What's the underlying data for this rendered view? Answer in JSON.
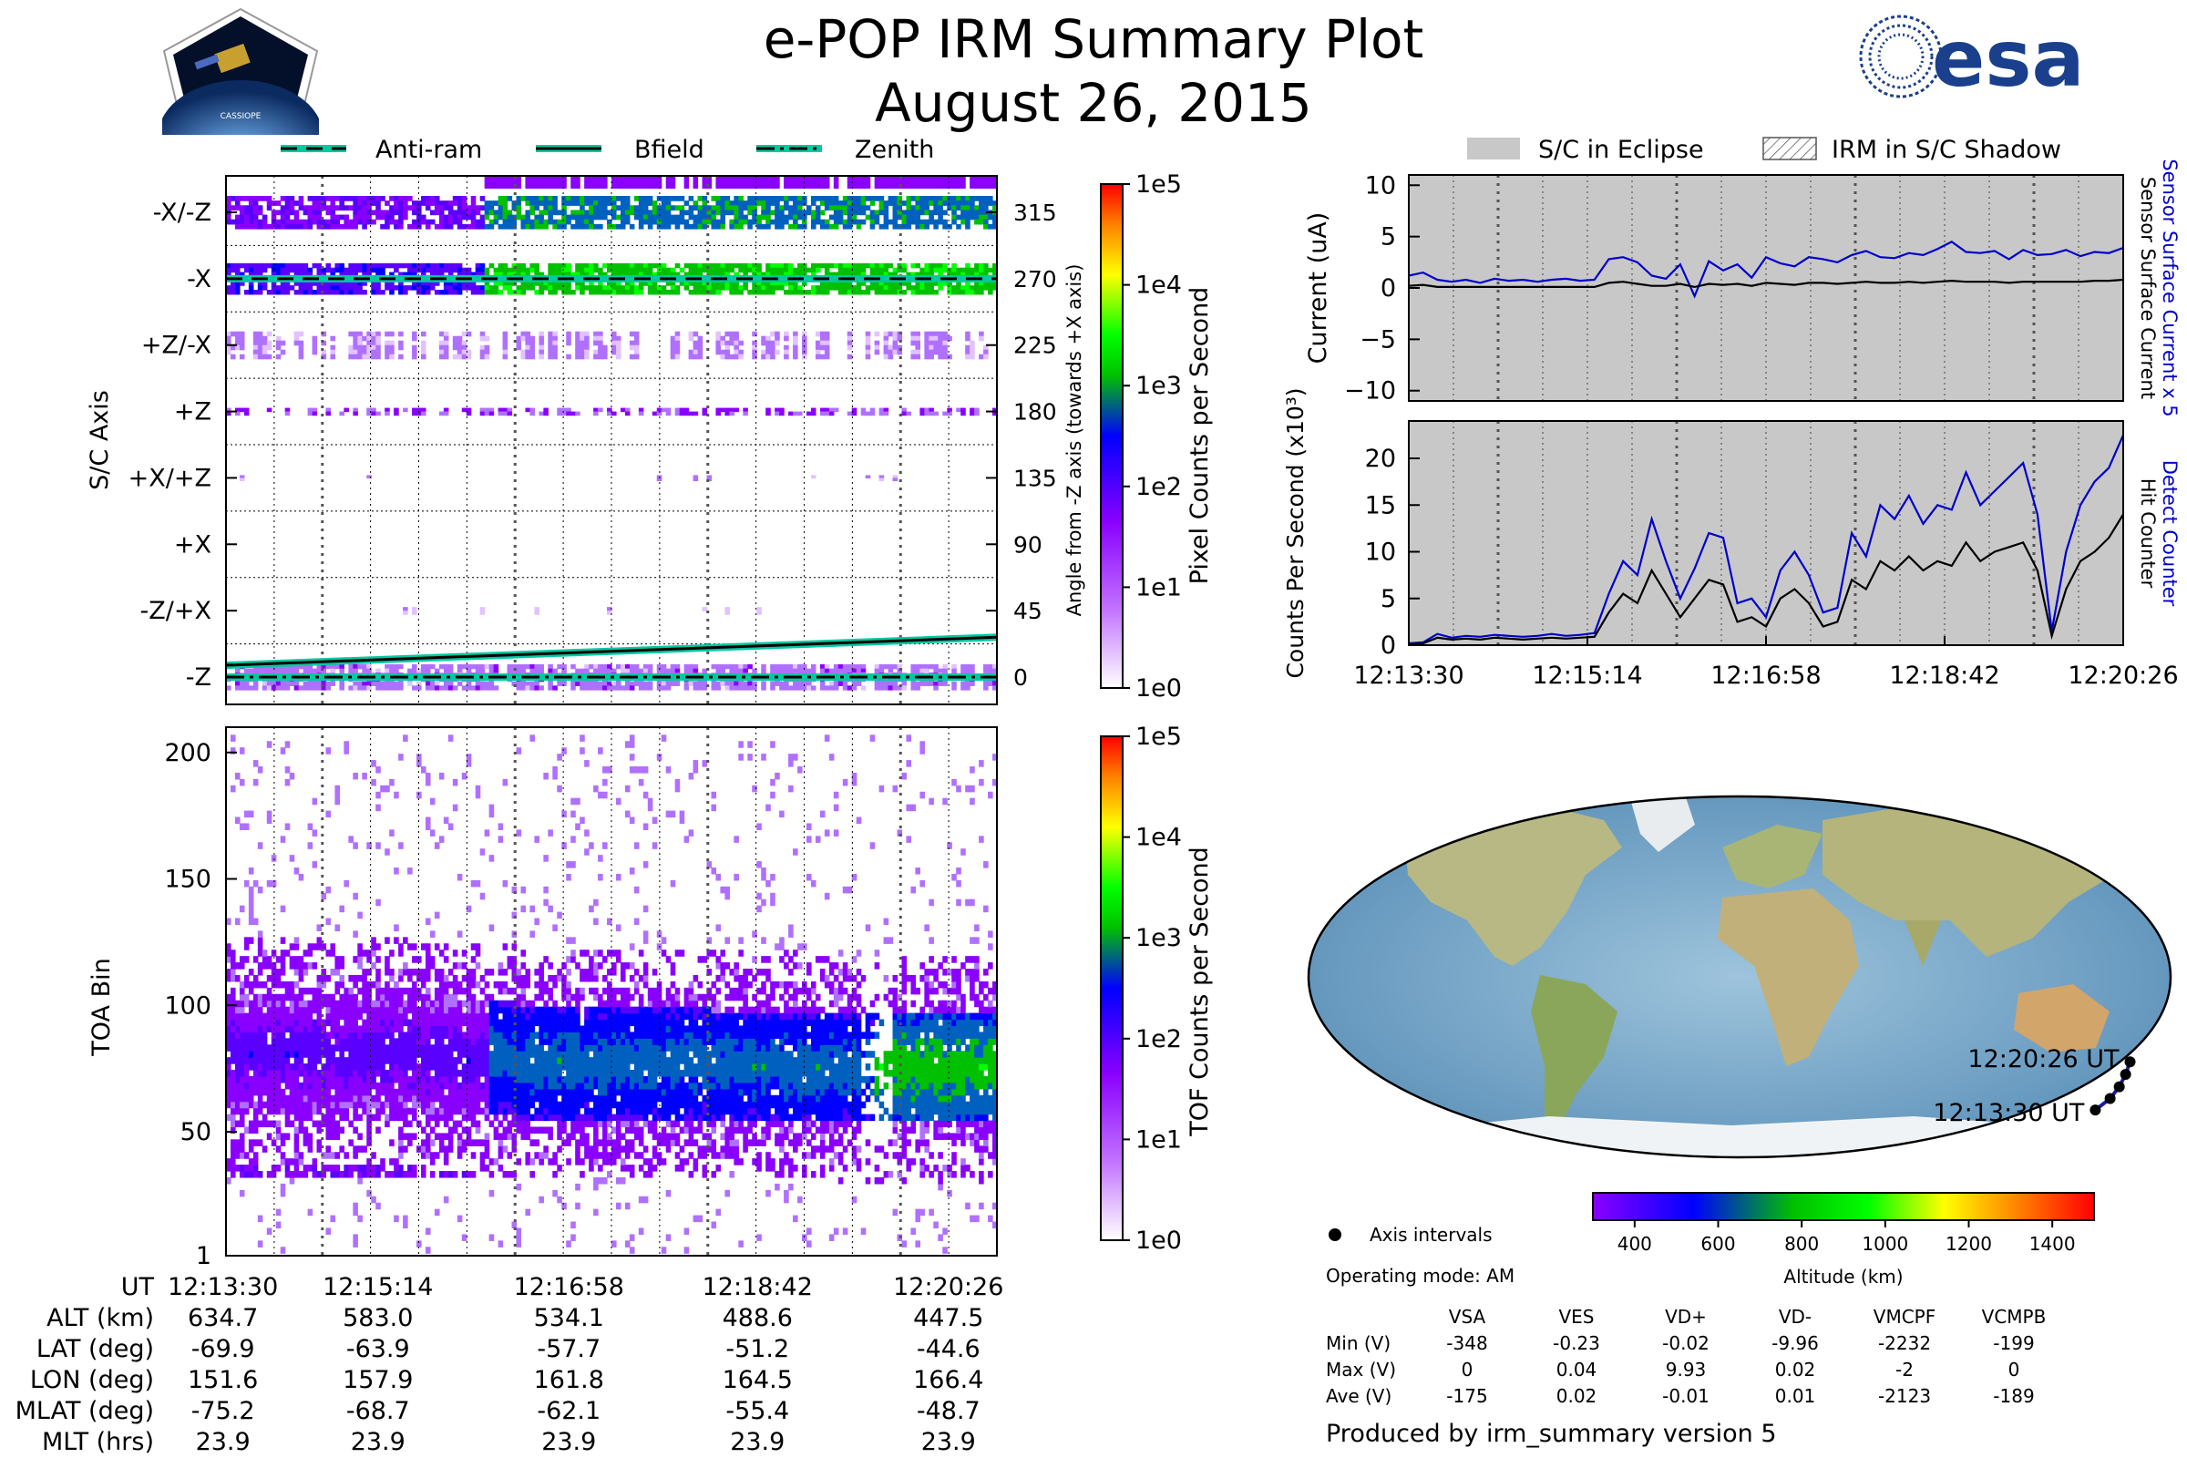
{
  "header": {
    "title": "e-POP IRM Summary Plot",
    "subtitle": "August 26, 2015",
    "cassiope_badge": "CASSIOPE",
    "esa_logo": "esa"
  },
  "colors": {
    "eclipse_gray": "#c8c8c8",
    "blue_trace": "#0000cc",
    "black_trace": "#000000",
    "bfield": "#00c8a0",
    "colormap": [
      "#ffffff",
      "#8a00ff",
      "#0000ff",
      "#00c000",
      "#00ff00",
      "#ffff00",
      "#ff0000"
    ]
  },
  "chart_data": [
    {
      "id": "sc_axis",
      "type": "heatmap",
      "ylabel": "S/C Axis",
      "right_ylabel": "Angle from -Z axis (towards +X axis)",
      "axis_labels": [
        "-X/-Z",
        "-X",
        "+Z/-X",
        "+Z",
        "+X/+Z",
        "+X",
        "-Z/+X",
        "-Z"
      ],
      "angle_ticks": [
        315,
        270,
        225,
        180,
        135,
        90,
        45,
        0
      ],
      "legend": [
        "Anti-ram",
        "Bfield",
        "Zenith"
      ],
      "colorbar": {
        "label": "Pixel Counts per Second",
        "ticks": [
          "1e5",
          "1e4",
          "1e3",
          "1e2",
          "1e1",
          "1e0"
        ]
      },
      "bfield_angle": {
        "start": 8,
        "end": 27
      },
      "antiram_angle": 270,
      "zenith_angle": 0
    },
    {
      "id": "toa",
      "type": "heatmap",
      "ylabel": "TOA Bin",
      "yticks": [
        200,
        150,
        100,
        50,
        1
      ],
      "ylim": [
        1,
        210
      ],
      "colorbar": {
        "label": "TOF Counts per Second",
        "ticks": [
          "1e5",
          "1e4",
          "1e3",
          "1e2",
          "1e1",
          "1e0"
        ]
      },
      "band_center": [
        80,
        80,
        78,
        76,
        76,
        75,
        74,
        74
      ]
    },
    {
      "id": "current",
      "type": "line",
      "ylabel": "Current (uA)",
      "yticks": [
        10,
        5,
        0,
        -5,
        -10
      ],
      "ylim": [
        -11,
        11
      ],
      "legend": [
        "S/C in Eclipse",
        "IRM in S/C Shadow"
      ],
      "right_labels": [
        "Sensor Surface Current x 5",
        "Sensor Surface Current"
      ],
      "series": [
        {
          "name": "Sensor Surface Current x 5",
          "color": "#0000cc",
          "values": [
            1.2,
            1.5,
            0.8,
            0.6,
            0.8,
            0.5,
            0.9,
            0.7,
            0.8,
            0.6,
            0.8,
            0.9,
            0.7,
            0.8,
            2.8,
            3.0,
            2.5,
            1.2,
            0.9,
            2.3,
            -0.8,
            2.6,
            1.7,
            2.3,
            1.0,
            3.0,
            2.4,
            2.1,
            3.0,
            2.8,
            2.5,
            3.2,
            3.6,
            3.0,
            2.9,
            3.4,
            3.2,
            3.8,
            4.5,
            3.5,
            3.4,
            3.6,
            2.8,
            3.7,
            3.2,
            3.3,
            3.7,
            3.1,
            3.5,
            3.4,
            3.9
          ]
        },
        {
          "name": "Sensor Surface Current",
          "color": "#000000",
          "values": [
            0.2,
            0.3,
            0.1,
            0.1,
            0.1,
            0.1,
            0.1,
            0.1,
            0.1,
            0.1,
            0.1,
            0.1,
            0.1,
            0.1,
            0.5,
            0.6,
            0.4,
            0.2,
            0.2,
            0.4,
            0.1,
            0.4,
            0.3,
            0.4,
            0.2,
            0.5,
            0.4,
            0.3,
            0.5,
            0.5,
            0.4,
            0.5,
            0.6,
            0.5,
            0.5,
            0.6,
            0.5,
            0.6,
            0.7,
            0.6,
            0.6,
            0.6,
            0.5,
            0.6,
            0.6,
            0.6,
            0.6,
            0.6,
            0.7,
            0.7,
            0.8
          ]
        }
      ]
    },
    {
      "id": "counts",
      "type": "line",
      "ylabel": "Counts Per Second (x10³)",
      "yticks": [
        20,
        15,
        10,
        5,
        0
      ],
      "ylim": [
        0,
        24
      ],
      "xticks": [
        "12:13:30",
        "12:15:14",
        "12:16:58",
        "12:18:42",
        "12:20:26"
      ],
      "right_labels": [
        "Detect Counter",
        "Hit Counter"
      ],
      "series": [
        {
          "name": "Detect Counter",
          "color": "#0000cc",
          "values": [
            0.2,
            0.3,
            1.2,
            0.8,
            1.0,
            0.9,
            1.1,
            1.0,
            0.9,
            1.0,
            1.2,
            1.0,
            1.1,
            1.3,
            5.5,
            9.0,
            7.5,
            13.5,
            9.0,
            5.0,
            8.2,
            12.0,
            11.5,
            4.5,
            5.0,
            3.0,
            8.0,
            10.0,
            7.5,
            3.5,
            4.0,
            12.0,
            9.5,
            15.0,
            13.5,
            16.0,
            13.0,
            15.0,
            14.5,
            18.5,
            15.0,
            16.5,
            18.0,
            19.5,
            14.0,
            1.5,
            10.0,
            15.0,
            17.5,
            19.0,
            22.5
          ]
        },
        {
          "name": "Hit Counter",
          "color": "#000000",
          "values": [
            0.1,
            0.2,
            0.8,
            0.6,
            0.7,
            0.6,
            0.8,
            0.7,
            0.6,
            0.7,
            0.8,
            0.7,
            0.8,
            0.9,
            3.5,
            5.5,
            4.5,
            8.0,
            5.5,
            3.0,
            5.0,
            7.0,
            6.5,
            2.5,
            3.0,
            2.0,
            5.0,
            6.0,
            4.5,
            2.0,
            2.5,
            7.0,
            6.0,
            9.0,
            8.0,
            9.5,
            8.0,
            9.0,
            8.5,
            11.0,
            9.0,
            10.0,
            10.5,
            11.0,
            8.0,
            1.0,
            6.0,
            9.0,
            10.0,
            11.5,
            14.0
          ]
        }
      ]
    },
    {
      "id": "ground_track",
      "type": "scatter",
      "points_label": "Axis intervals",
      "track_labels": [
        "12:20:26 UT",
        "12:13:30 UT"
      ],
      "track": [
        {
          "lon": 151.6,
          "lat": -69.9
        },
        {
          "lon": 157.9,
          "lat": -63.9
        },
        {
          "lon": 161.8,
          "lat": -57.7
        },
        {
          "lon": 164.5,
          "lat": -51.2
        },
        {
          "lon": 166.4,
          "lat": -44.6
        }
      ],
      "colorbar": {
        "label": "Altitude (km)",
        "ticks": [
          "400",
          "600",
          "800",
          "1000",
          "1200",
          "1400"
        ]
      }
    }
  ],
  "orbit_table": {
    "rows": [
      {
        "label": "UT",
        "values": [
          "12:13:30",
          "12:15:14",
          "12:16:58",
          "12:18:42",
          "12:20:26"
        ]
      },
      {
        "label": "ALT (km)",
        "values": [
          "634.7",
          "583.0",
          "534.1",
          "488.6",
          "447.5"
        ]
      },
      {
        "label": "LAT (deg)",
        "values": [
          "-69.9",
          "-63.9",
          "-57.7",
          "-51.2",
          "-44.6"
        ]
      },
      {
        "label": "LON (deg)",
        "values": [
          "151.6",
          "157.9",
          "161.8",
          "164.5",
          "166.4"
        ]
      },
      {
        "label": "MLAT (deg)",
        "values": [
          "-75.2",
          "-68.7",
          "-62.1",
          "-55.4",
          "-48.7"
        ]
      },
      {
        "label": "MLT (hrs)",
        "values": [
          "23.9",
          "23.9",
          "23.9",
          "23.9",
          "23.9"
        ]
      }
    ]
  },
  "operating_mode": "Operating mode: AM",
  "voltage_table": {
    "headers": [
      "VSA",
      "VES",
      "VD+",
      "VD-",
      "VMCPF",
      "VCMPB"
    ],
    "rows": [
      {
        "label": "Min (V)",
        "values": [
          "-348",
          "-0.23",
          "-0.02",
          "-9.96",
          "-2232",
          "-199"
        ]
      },
      {
        "label": "Max (V)",
        "values": [
          "0",
          "0.04",
          "9.93",
          "0.02",
          "-2",
          "0"
        ]
      },
      {
        "label": "Ave (V)",
        "values": [
          "-175",
          "0.02",
          "-0.01",
          "0.01",
          "-2123",
          "-189"
        ]
      }
    ]
  },
  "footer": "Produced by irm_summary version 5"
}
